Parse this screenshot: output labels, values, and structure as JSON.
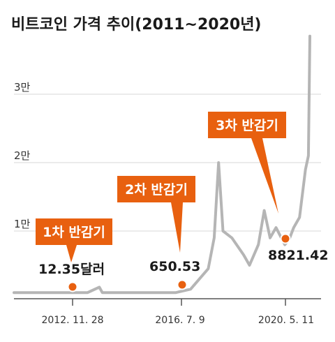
{
  "chart_data": {
    "type": "line",
    "title": "비트코인 가격 추이(2011~2020년)",
    "y_ticks": [
      "1만",
      "2만",
      "3만"
    ],
    "x_ticks": [
      "2012. 11. 28",
      "2016. 7. 9",
      "2020. 5. 11"
    ],
    "ylim": [
      0,
      40000
    ],
    "grid": true,
    "series": [
      {
        "x": [
          2011.0,
          2012.0,
          2012.9,
          2013.3,
          2013.5,
          2013.9,
          2014.0,
          2014.5,
          2015.0,
          2015.5,
          2016.0,
          2016.5,
          2017.0,
          2017.3,
          2017.6,
          2017.8,
          2017.95,
          2018.1,
          2018.4,
          2018.8,
          2019.0,
          2019.3,
          2019.5,
          2019.7,
          2019.9,
          2020.2,
          2020.35,
          2020.5,
          2020.7,
          2020.9,
          2021.0,
          2021.05
        ],
        "y": [
          1000,
          1000,
          1000,
          1000,
          1000,
          1800,
          1000,
          1000,
          1000,
          1000,
          1000,
          1000,
          1500,
          3000,
          4500,
          9000,
          20000,
          10000,
          9000,
          6500,
          5000,
          8000,
          13000,
          9000,
          10500,
          8000,
          8821.42,
          10500,
          12000,
          19000,
          21000,
          38500
        ]
      }
    ],
    "annotations": [
      {
        "label": "1차 반감기",
        "price": "12.35달러",
        "x": 2012.9,
        "y": 1000
      },
      {
        "label": "2차 반감기",
        "price": "650.53",
        "x": 2016.52,
        "y": 1700
      },
      {
        "label": "3차 반감기",
        "price": "8821.42",
        "x": 2020.35,
        "y": 8821.42
      }
    ]
  },
  "colors": {
    "accent": "#e8600f",
    "line": "#b5b5b5"
  }
}
